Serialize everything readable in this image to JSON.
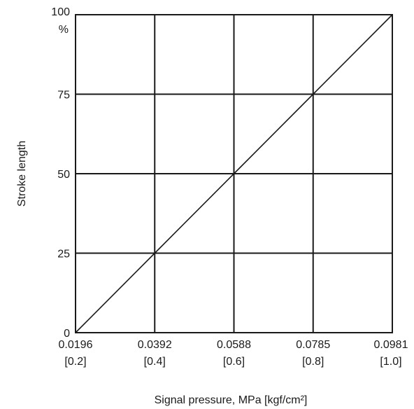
{
  "chart_data": {
    "type": "line",
    "title": "",
    "xlabel": "Signal pressure, MPa [kgf/cm²]",
    "ylabel": "Stroke length",
    "x_ticks": [
      {
        "value": 0.0196,
        "label": "0.0196",
        "sublabel": "[0.2]"
      },
      {
        "value": 0.0392,
        "label": "0.0392",
        "sublabel": "[0.4]"
      },
      {
        "value": 0.0588,
        "label": "0.0588",
        "sublabel": "[0.6]"
      },
      {
        "value": 0.0785,
        "label": "0.0785",
        "sublabel": "[0.8]"
      },
      {
        "value": 0.0981,
        "label": "0.0981",
        "sublabel": "[1.0]"
      }
    ],
    "y_ticks": [
      {
        "value": 0,
        "label": "0"
      },
      {
        "value": 25,
        "label": "25"
      },
      {
        "value": 50,
        "label": "50"
      },
      {
        "value": 75,
        "label": "75"
      },
      {
        "value": 100,
        "label": "100"
      }
    ],
    "y_unit": "%",
    "xlim": [
      0.0196,
      0.0981
    ],
    "ylim": [
      0,
      100
    ],
    "grid": true,
    "series": [
      {
        "x": [
          0.0196,
          0.0392,
          0.0588,
          0.0785,
          0.0981
        ],
        "y": [
          0,
          25,
          50,
          75,
          100
        ]
      }
    ],
    "colors": {
      "line": "#1a1a1a",
      "grid": "#1a1a1a"
    }
  }
}
